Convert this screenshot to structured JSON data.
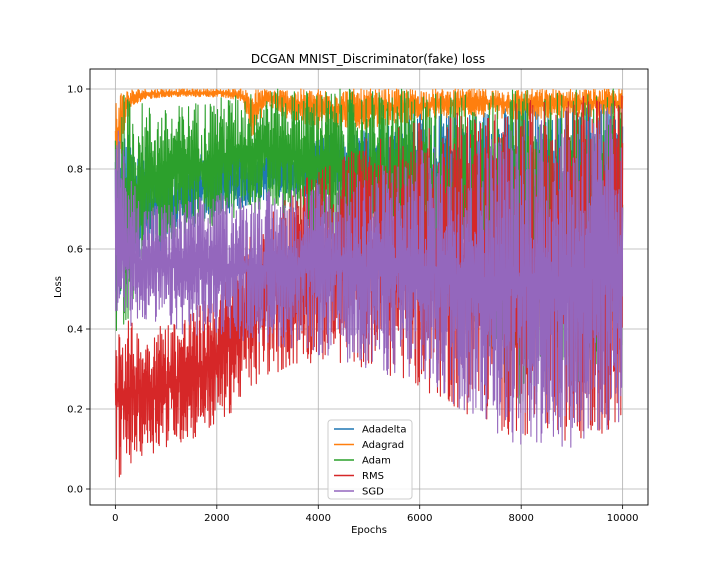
{
  "chart_data": {
    "type": "line",
    "title": "DCGAN MNIST_Discriminator(fake) loss",
    "xlabel": "Epochs",
    "ylabel": "Loss",
    "xlim": [
      -500,
      10500
    ],
    "ylim": [
      -0.04,
      1.05
    ],
    "xticks": [
      0,
      2000,
      4000,
      6000,
      8000,
      10000
    ],
    "yticks": [
      0.0,
      0.2,
      0.4,
      0.6,
      0.8,
      1.0
    ],
    "xtick_labels": [
      "0",
      "2000",
      "4000",
      "6000",
      "8000",
      "10000"
    ],
    "ytick_labels": [
      "0.0",
      "0.2",
      "0.4",
      "0.6",
      "0.8",
      "1.0"
    ],
    "grid": true,
    "legend_position": "lower-center",
    "series": [
      {
        "name": "Adadelta",
        "color": "#1f77b4",
        "x": [
          0,
          500,
          1000,
          1500,
          2000,
          2500,
          3000,
          3500,
          4000,
          5000,
          6000,
          7000,
          8000,
          9000,
          10000
        ],
        "y_low": [
          0.42,
          0.55,
          0.6,
          0.65,
          0.68,
          0.7,
          0.72,
          0.74,
          0.72,
          0.7,
          0.62,
          0.58,
          0.5,
          0.45,
          0.4
        ],
        "y_high": [
          0.9,
          0.88,
          0.82,
          0.84,
          0.85,
          0.86,
          0.86,
          0.85,
          0.88,
          0.9,
          0.95,
          0.95,
          0.96,
          0.97,
          0.97
        ]
      },
      {
        "name": "Adagrad",
        "color": "#ff7f0e",
        "x": [
          0,
          200,
          500,
          1000,
          1500,
          2000,
          2500,
          2700,
          3000,
          3300,
          4000,
          5000,
          6000,
          7000,
          8000,
          9000,
          10000
        ],
        "y_low": [
          0.7,
          0.92,
          0.97,
          0.98,
          0.98,
          0.98,
          0.97,
          0.88,
          0.96,
          0.93,
          0.9,
          0.9,
          0.92,
          0.93,
          0.92,
          0.93,
          0.93
        ],
        "y_high": [
          1.0,
          1.0,
          1.0,
          1.0,
          1.0,
          1.0,
          1.0,
          1.0,
          1.0,
          1.0,
          1.0,
          1.0,
          1.0,
          1.0,
          1.0,
          1.0,
          1.0
        ]
      },
      {
        "name": "Adam",
        "color": "#2ca02c",
        "x": [
          0,
          500,
          1000,
          1500,
          2000,
          2500,
          3000,
          3500,
          4000,
          5000,
          6000,
          7000,
          8000,
          9000,
          10000
        ],
        "y_low": [
          0.3,
          0.55,
          0.62,
          0.64,
          0.66,
          0.68,
          0.7,
          0.65,
          0.62,
          0.55,
          0.45,
          0.4,
          0.2,
          0.25,
          0.3
        ],
        "y_high": [
          1.0,
          0.97,
          0.95,
          0.97,
          0.98,
          0.99,
          1.0,
          1.0,
          1.0,
          1.0,
          1.0,
          1.0,
          1.0,
          1.0,
          1.0
        ]
      },
      {
        "name": "RMS",
        "color": "#d62728",
        "x": [
          0,
          500,
          1000,
          1500,
          2000,
          2500,
          3000,
          3500,
          4000,
          5000,
          6000,
          7000,
          8000,
          9000,
          10000
        ],
        "y_low": [
          0.02,
          0.08,
          0.1,
          0.12,
          0.15,
          0.22,
          0.28,
          0.3,
          0.32,
          0.3,
          0.25,
          0.18,
          0.12,
          0.12,
          0.15
        ],
        "y_high": [
          0.45,
          0.4,
          0.42,
          0.45,
          0.5,
          0.6,
          0.7,
          0.75,
          0.8,
          0.88,
          0.92,
          0.95,
          0.97,
          0.98,
          0.99
        ]
      },
      {
        "name": "SGD",
        "color": "#9467bd",
        "x": [
          0,
          500,
          1000,
          1500,
          2000,
          2500,
          3000,
          3500,
          4000,
          5000,
          6000,
          7000,
          8000,
          9000,
          10000
        ],
        "y_low": [
          0.38,
          0.42,
          0.4,
          0.38,
          0.38,
          0.37,
          0.36,
          0.35,
          0.33,
          0.3,
          0.25,
          0.18,
          0.1,
          0.1,
          0.15
        ],
        "y_high": [
          0.92,
          0.72,
          0.72,
          0.73,
          0.74,
          0.74,
          0.75,
          0.76,
          0.78,
          0.8,
          0.85,
          0.88,
          0.92,
          0.95,
          0.98
        ]
      }
    ]
  }
}
